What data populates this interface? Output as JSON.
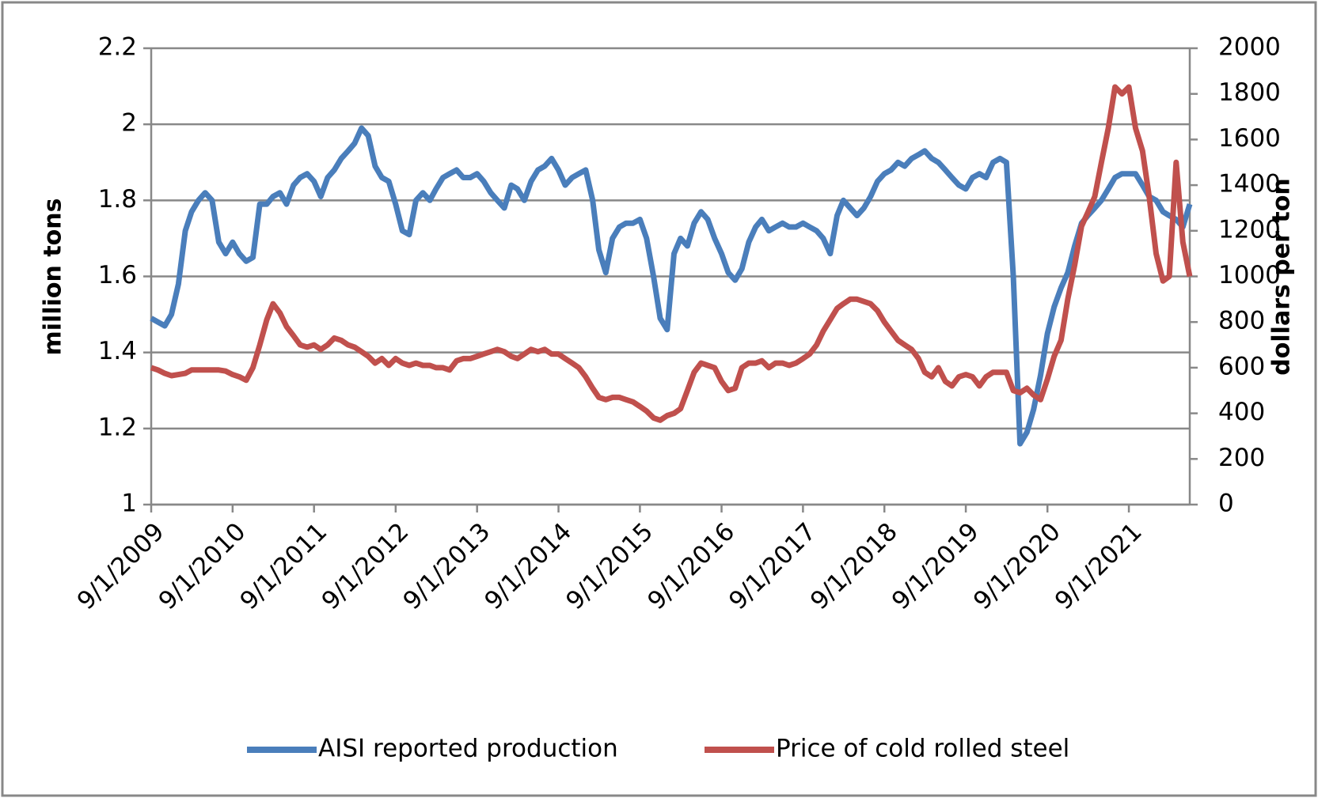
{
  "chart_data": {
    "type": "line",
    "y_label": "million tons",
    "y2_label": "dollars per ton",
    "x": [
      "2009-09-01",
      "2009-10-01",
      "2009-11-01",
      "2009-12-01",
      "2010-01-01",
      "2010-02-01",
      "2010-03-01",
      "2010-04-01",
      "2010-05-01",
      "2010-06-01",
      "2010-07-01",
      "2010-08-01",
      "2010-09-01",
      "2010-10-01",
      "2010-11-01",
      "2010-12-01",
      "2011-01-01",
      "2011-02-01",
      "2011-03-01",
      "2011-04-01",
      "2011-05-01",
      "2011-06-01",
      "2011-07-01",
      "2011-08-01",
      "2011-09-01",
      "2011-10-01",
      "2011-11-01",
      "2011-12-01",
      "2012-01-01",
      "2012-02-01",
      "2012-03-01",
      "2012-04-01",
      "2012-05-01",
      "2012-06-01",
      "2012-07-01",
      "2012-08-01",
      "2012-09-01",
      "2012-10-01",
      "2012-11-01",
      "2012-12-01",
      "2013-01-01",
      "2013-02-01",
      "2013-03-01",
      "2013-04-01",
      "2013-05-01",
      "2013-06-01",
      "2013-07-01",
      "2013-08-01",
      "2013-09-01",
      "2013-10-01",
      "2013-11-01",
      "2013-12-01",
      "2014-01-01",
      "2014-02-01",
      "2014-03-01",
      "2014-04-01",
      "2014-05-01",
      "2014-06-01",
      "2014-07-01",
      "2014-08-01",
      "2014-09-01",
      "2014-10-01",
      "2014-11-01",
      "2014-12-01",
      "2015-01-01",
      "2015-02-01",
      "2015-03-01",
      "2015-04-01",
      "2015-05-01",
      "2015-06-01",
      "2015-07-01",
      "2015-08-01",
      "2015-09-01",
      "2015-10-01",
      "2015-11-01",
      "2015-12-01",
      "2016-01-01",
      "2016-02-01",
      "2016-03-01",
      "2016-04-01",
      "2016-05-01",
      "2016-06-01",
      "2016-07-01",
      "2016-08-01",
      "2016-09-01",
      "2016-10-01",
      "2016-11-01",
      "2016-12-01",
      "2017-01-01",
      "2017-02-01",
      "2017-03-01",
      "2017-04-01",
      "2017-05-01",
      "2017-06-01",
      "2017-07-01",
      "2017-08-01",
      "2017-09-01",
      "2017-10-01",
      "2017-11-01",
      "2017-12-01",
      "2018-01-01",
      "2018-02-01",
      "2018-03-01",
      "2018-04-01",
      "2018-05-01",
      "2018-06-01",
      "2018-07-01",
      "2018-08-01",
      "2018-09-01",
      "2018-10-01",
      "2018-11-01",
      "2018-12-01",
      "2019-01-01",
      "2019-02-01",
      "2019-03-01",
      "2019-04-01",
      "2019-05-01",
      "2019-06-01",
      "2019-07-01",
      "2019-08-01",
      "2019-09-01",
      "2019-10-01",
      "2019-11-01",
      "2019-12-01",
      "2020-01-01",
      "2020-02-01",
      "2020-03-01",
      "2020-04-01",
      "2020-05-01",
      "2020-06-01",
      "2020-07-01",
      "2020-08-01",
      "2020-09-01",
      "2020-10-01",
      "2020-11-01",
      "2020-12-01",
      "2021-01-01",
      "2021-02-01",
      "2021-03-01",
      "2021-04-01",
      "2021-05-01",
      "2021-06-01",
      "2021-07-01",
      "2021-08-01",
      "2021-09-01",
      "2021-10-01",
      "2021-11-01",
      "2021-12-01",
      "2022-01-01",
      "2022-02-01",
      "2022-03-01",
      "2022-04-01",
      "2022-05-01",
      "2022-06-01"
    ],
    "series": [
      {
        "name": "AISI reported production",
        "color": "#4a7ebb",
        "values": [
          1.49,
          1.48,
          1.47,
          1.5,
          1.58,
          1.72,
          1.77,
          1.8,
          1.82,
          1.8,
          1.69,
          1.66,
          1.69,
          1.66,
          1.64,
          1.65,
          1.79,
          1.79,
          1.81,
          1.82,
          1.79,
          1.84,
          1.86,
          1.87,
          1.85,
          1.81,
          1.86,
          1.88,
          1.91,
          1.93,
          1.95,
          1.99,
          1.97,
          1.89,
          1.86,
          1.85,
          1.79,
          1.72,
          1.71,
          1.8,
          1.82,
          1.8,
          1.83,
          1.86,
          1.87,
          1.88,
          1.86,
          1.86,
          1.87,
          1.85,
          1.82,
          1.8,
          1.78,
          1.84,
          1.83,
          1.8,
          1.85,
          1.88,
          1.89,
          1.91,
          1.88,
          1.84,
          1.86,
          1.87,
          1.88,
          1.8,
          1.67,
          1.61,
          1.7,
          1.73,
          1.74,
          1.74,
          1.75,
          1.7,
          1.6,
          1.49,
          1.46,
          1.66,
          1.7,
          1.68,
          1.74,
          1.77,
          1.75,
          1.7,
          1.66,
          1.61,
          1.59,
          1.62,
          1.69,
          1.73,
          1.75,
          1.72,
          1.73,
          1.74,
          1.73,
          1.73,
          1.74,
          1.73,
          1.72,
          1.7,
          1.66,
          1.76,
          1.8,
          1.78,
          1.76,
          1.78,
          1.81,
          1.85,
          1.87,
          1.88,
          1.9,
          1.89,
          1.91,
          1.92,
          1.93,
          1.91,
          1.9,
          1.88,
          1.86,
          1.84,
          1.83,
          1.86,
          1.87,
          1.86,
          1.9,
          1.91,
          1.9,
          1.6,
          1.16,
          1.19,
          1.25,
          1.34,
          1.45,
          1.52,
          1.57,
          1.61,
          1.68,
          1.74,
          1.76,
          1.78,
          1.8,
          1.83,
          1.86,
          1.87,
          1.87,
          1.87,
          1.84,
          1.81,
          1.8,
          1.77,
          1.76,
          1.75,
          1.73,
          1.79
        ]
      },
      {
        "name": "Price of cold rolled steel",
        "color": "#c0504d",
        "axis": "y2",
        "values": [
          600,
          590,
          575,
          565,
          570,
          575,
          590,
          590,
          590,
          590,
          590,
          585,
          570,
          560,
          545,
          600,
          700,
          810,
          880,
          840,
          780,
          740,
          700,
          690,
          700,
          680,
          700,
          730,
          720,
          700,
          690,
          670,
          650,
          620,
          640,
          610,
          640,
          620,
          610,
          620,
          610,
          610,
          600,
          600,
          590,
          630,
          640,
          640,
          650,
          660,
          670,
          680,
          670,
          650,
          640,
          660,
          680,
          670,
          680,
          660,
          660,
          640,
          620,
          600,
          560,
          510,
          470,
          460,
          470,
          470,
          460,
          450,
          430,
          410,
          380,
          370,
          390,
          400,
          420,
          500,
          580,
          620,
          610,
          600,
          540,
          500,
          510,
          600,
          620,
          620,
          630,
          600,
          620,
          620,
          610,
          620,
          640,
          660,
          700,
          760,
          810,
          860,
          880,
          900,
          900,
          890,
          880,
          850,
          800,
          760,
          720,
          700,
          680,
          640,
          580,
          560,
          600,
          540,
          520,
          560,
          570,
          560,
          520,
          560,
          580,
          580,
          580,
          500,
          490,
          510,
          480,
          460,
          550,
          650,
          720,
          900,
          1050,
          1220,
          1280,
          1350,
          1500,
          1650,
          1830,
          1800,
          1830,
          1650,
          1550,
          1350,
          1100,
          980,
          1000,
          1500,
          1150,
          1000
        ]
      }
    ],
    "xlim": [
      "2009-09-01",
      "2022-06-01"
    ],
    "xticks": [
      {
        "value": "2009-09-01",
        "label": "9/1/2009"
      },
      {
        "value": "2010-09-01",
        "label": "9/1/2010"
      },
      {
        "value": "2011-09-01",
        "label": "9/1/2011"
      },
      {
        "value": "2012-09-01",
        "label": "9/1/2012"
      },
      {
        "value": "2013-09-01",
        "label": "9/1/2013"
      },
      {
        "value": "2014-09-01",
        "label": "9/1/2014"
      },
      {
        "value": "2015-09-01",
        "label": "9/1/2015"
      },
      {
        "value": "2016-09-01",
        "label": "9/1/2016"
      },
      {
        "value": "2017-09-01",
        "label": "9/1/2017"
      },
      {
        "value": "2018-09-01",
        "label": "9/1/2018"
      },
      {
        "value": "2019-09-01",
        "label": "9/1/2019"
      },
      {
        "value": "2020-09-01",
        "label": "9/1/2020"
      },
      {
        "value": "2021-09-01",
        "label": "9/1/2021"
      }
    ],
    "ylim": [
      1,
      2.2
    ],
    "yticks": [
      1,
      1.2,
      1.4,
      1.6,
      1.8,
      2,
      2.2
    ],
    "y2lim": [
      0,
      2000
    ],
    "y2ticks": [
      0,
      200,
      400,
      600,
      800,
      1000,
      1200,
      1400,
      1600,
      1800,
      2000
    ],
    "grid": true,
    "legend": "bottom"
  }
}
